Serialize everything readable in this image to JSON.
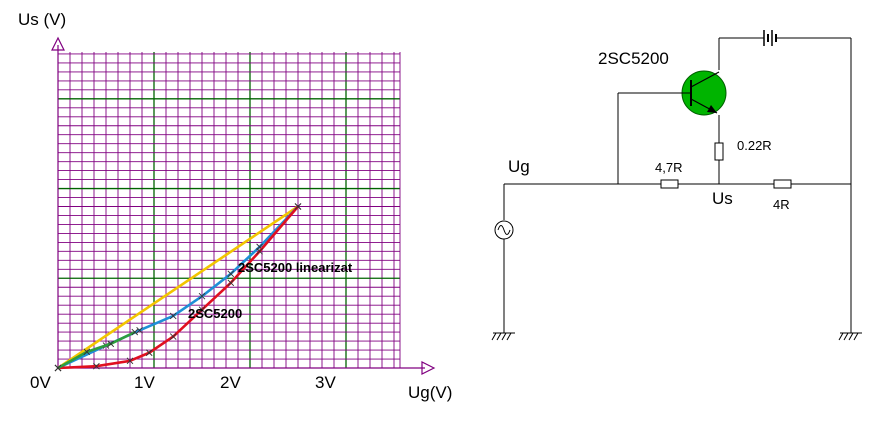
{
  "chart": {
    "y_axis_title": "Us (V)",
    "x_axis_title": "Ug(V)",
    "x_tick_labels": [
      "0V",
      "1V",
      "2V",
      "3V"
    ],
    "legend_linearized": "2SC5200 linearizat",
    "legend_raw": "2SC5200",
    "colors": {
      "grid_minor": "#800080",
      "grid_major": "#006400",
      "axis": "#800080",
      "ideal_line": "#f2c500",
      "linearized_line": "#1e90d6",
      "raw_line": "#e01020",
      "green_segment": "#2e9e3e",
      "legend_linearized": "#1a8fd0",
      "legend_raw": "#e01020"
    }
  },
  "chart_data": {
    "type": "line",
    "xlabel": "Ug(V)",
    "ylabel": "Us (V)",
    "xlim": [
      0,
      4
    ],
    "ylim": [
      0,
      3.6
    ],
    "x_ticks": [
      0,
      1,
      2,
      3
    ],
    "grid": true,
    "series": [
      {
        "x": [
          0,
          2.5
        ],
        "y": [
          0,
          1.8
        ]
      },
      {
        "name": "2SC5200 linearizat",
        "x": [
          0,
          0.5,
          0.85,
          1.2,
          1.5,
          1.8,
          2.1,
          2.5
        ],
        "y": [
          0,
          0.25,
          0.42,
          0.58,
          0.8,
          1.05,
          1.35,
          1.8
        ]
      },
      {
        "name": "2SC5200",
        "x": [
          0,
          0.4,
          0.75,
          0.95,
          1.2,
          1.5,
          1.8,
          2.1,
          2.5
        ],
        "y": [
          0,
          0.02,
          0.08,
          0.17,
          0.35,
          0.65,
          0.95,
          1.3,
          1.8
        ]
      },
      {
        "x": [
          0,
          0.3,
          0.55,
          0.8
        ],
        "y": [
          0,
          0.18,
          0.27,
          0.4
        ]
      }
    ]
  },
  "circuit": {
    "transistor_label": "2SC5200",
    "input_label": "Ug",
    "output_label": "Us",
    "r_emitter": "0.22R",
    "r_series": "4,7R",
    "r_load": "4R",
    "colors": {
      "transistor_body": "#00b400",
      "wire": "#000000"
    }
  }
}
